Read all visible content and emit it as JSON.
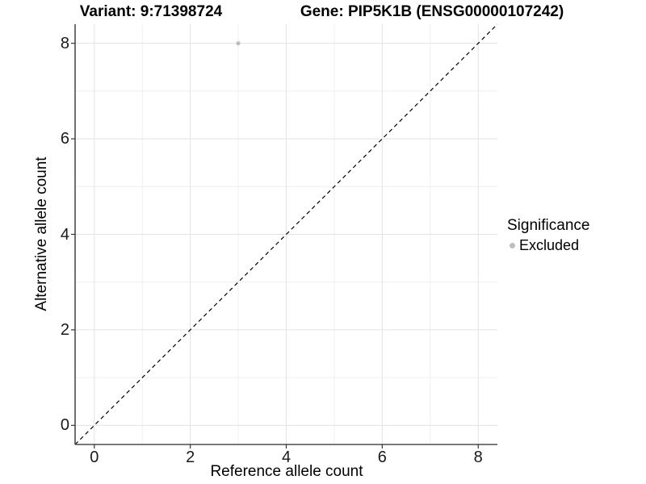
{
  "chart_data": {
    "type": "scatter",
    "title_left": "Variant: 9:71398724",
    "title_right": "Gene: PIP5K1B (ENSG00000107242)",
    "xlabel": "Reference allele count",
    "ylabel": "Alternative allele count",
    "xlim": [
      -0.4,
      8.4
    ],
    "ylim": [
      -0.4,
      8.4
    ],
    "x_ticks": [
      0,
      2,
      4,
      6,
      8
    ],
    "y_ticks": [
      0,
      2,
      4,
      6,
      8
    ],
    "x_minor_ticks": [
      1,
      3,
      5,
      7
    ],
    "y_minor_ticks": [
      1,
      3,
      5,
      7
    ],
    "grid": "major+minor",
    "legend_position": "right",
    "points": [
      {
        "x": 3,
        "y": 8,
        "series": "Excluded"
      }
    ],
    "series": [
      {
        "name": "Excluded",
        "color": "#bebebe"
      }
    ],
    "reference_line": {
      "kind": "identity",
      "slope": 1,
      "intercept": 0,
      "style": "dashed",
      "color": "#000000"
    }
  },
  "legend": {
    "title": "Significance",
    "items": [
      {
        "label": "Excluded",
        "color": "#bebebe"
      }
    ]
  },
  "colors": {
    "background": "#ffffff",
    "grid_major": "#e3e3e3",
    "grid_minor": "#efefef",
    "axis_line": "#4d4d4d",
    "tick_mark": "#333333",
    "tick_text": "#1a1a1a",
    "point": "#bebebe"
  }
}
